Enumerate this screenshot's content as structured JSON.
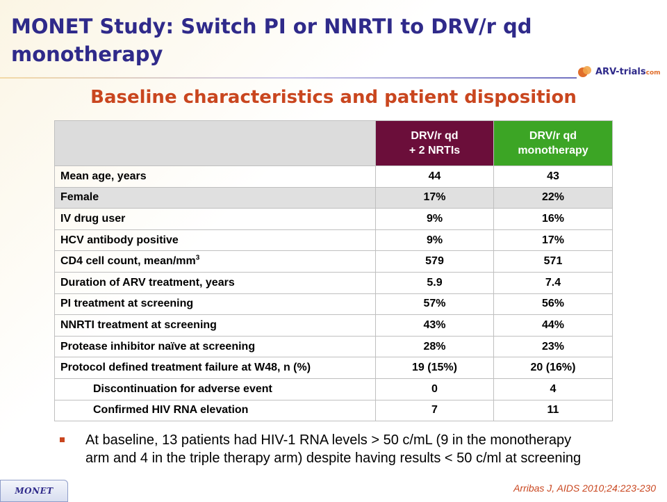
{
  "slide": {
    "title": "MONET Study: Switch PI or NNRTI to DRV/r qd monotherapy",
    "subtitle": "Baseline characteristics and patient disposition",
    "logo_text": "ARV-trials",
    "logo_suffix": "com",
    "footer_tab": "MONET",
    "citation": "Arribas J, AIDS 2010;24:223-230",
    "bullet": "At baseline, 13 patients had HIV-1 RNA levels > 50 c/mL (9 in the monotherapy arm and 4 in the triple therapy arm) despite having results < 50 c/ml at screening",
    "colors": {
      "title": "#2f2a8a",
      "subtitle": "#c9461f",
      "arm1_header": "#6b0e3a",
      "arm2_header": "#3ca525",
      "shade_row": "#e0e0e0"
    }
  },
  "table": {
    "headers": {
      "arm1_line1": "DRV/r qd",
      "arm1_line2": "+ 2 NRTIs",
      "arm2_line1": "DRV/r qd",
      "arm2_line2": "monotherapy"
    },
    "rows": [
      {
        "label": "Mean age, years",
        "a": "44",
        "b": "43"
      },
      {
        "label": "Female",
        "a": "17%",
        "b": "22%"
      },
      {
        "label": "IV drug user",
        "a": "9%",
        "b": "16%"
      },
      {
        "label": "HCV antibody positive",
        "a": "9%",
        "b": "17%"
      },
      {
        "label": "CD4 cell count, mean/mm",
        "sup": "3",
        "a": "579",
        "b": "571"
      },
      {
        "label": "Duration of ARV treatment, years",
        "a": "5.9",
        "b": "7.4"
      },
      {
        "label": "PI treatment at screening",
        "a": "57%",
        "b": "56%"
      },
      {
        "label": "NNRTI treatment at screening",
        "a": "43%",
        "b": "44%"
      },
      {
        "label": "Protease inhibitor naïve at screening",
        "a": "28%",
        "b": "23%"
      },
      {
        "label": "Protocol defined treatment failure at W48, n (%)",
        "a": "19 (15%)",
        "b": "20 (16%)"
      },
      {
        "label": "Discontinuation for adverse event",
        "a": "0",
        "b": "4"
      },
      {
        "label": "Confirmed HIV RNA elevation",
        "a": "7",
        "b": "11"
      }
    ]
  }
}
